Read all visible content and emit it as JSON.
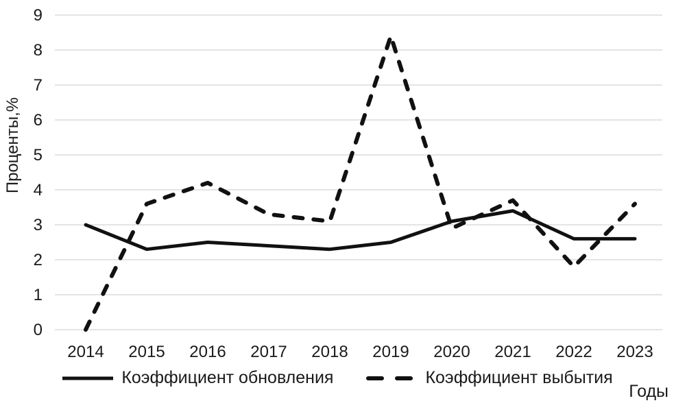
{
  "chart_data": {
    "type": "line",
    "title": "",
    "x": [
      "2014",
      "2015",
      "2016",
      "2017",
      "2018",
      "2019",
      "2020",
      "2021",
      "2022",
      "2023"
    ],
    "series": [
      {
        "name": "Коэффициент обновления",
        "line_style": "solid",
        "values": [
          3.0,
          2.3,
          2.5,
          2.4,
          2.3,
          2.5,
          3.1,
          3.4,
          2.6,
          2.6
        ]
      },
      {
        "name": "Коэффициент выбытия",
        "line_style": "dashed",
        "values": [
          0.0,
          3.6,
          4.2,
          3.3,
          3.1,
          8.4,
          2.9,
          3.7,
          1.8,
          3.6
        ]
      }
    ],
    "ylabel": "Проценты,%",
    "xlabel": "Годы",
    "ylim": [
      0,
      9
    ],
    "ytick_step": 1,
    "yticks": [
      "0",
      "1",
      "2",
      "3",
      "4",
      "5",
      "6",
      "7",
      "8",
      "9"
    ],
    "grid": "horizontal",
    "legend_position": "bottom",
    "line_color": "#111111",
    "gridline_color": "#c8c8c8",
    "text_color": "#1a1a1a",
    "background": "#ffffff"
  }
}
